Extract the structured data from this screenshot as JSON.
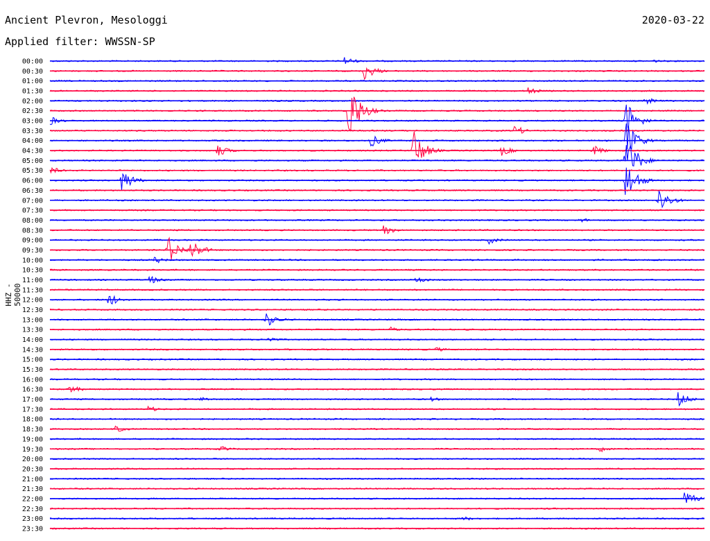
{
  "header": {
    "station": "Ancient Plevron, Mesologgi",
    "filter": "Applied filter: WWSSN-SP",
    "date": "2020-03-22"
  },
  "chart_data": {
    "type": "line",
    "ylabel": "HHZ - 50000",
    "row_labels": [
      "00:00",
      "00:30",
      "01:00",
      "01:30",
      "02:00",
      "02:30",
      "03:00",
      "03:30",
      "04:00",
      "04:30",
      "05:00",
      "05:30",
      "06:00",
      "06:30",
      "07:00",
      "07:30",
      "08:00",
      "08:30",
      "09:00",
      "09:30",
      "10:00",
      "10:30",
      "11:00",
      "11:30",
      "12:00",
      "12:30",
      "13:00",
      "13:30",
      "14:00",
      "14:30",
      "15:00",
      "15:30",
      "16:00",
      "16:30",
      "17:00",
      "17:30",
      "18:00",
      "18:30",
      "19:00",
      "19:30",
      "20:00",
      "20:30",
      "21:00",
      "21:30",
      "22:00",
      "22:30",
      "23:00",
      "23:30"
    ],
    "colors": {
      "even": "#0000ff",
      "odd": "#ff0040"
    },
    "events": [
      {
        "row": 0,
        "pos": 0.45,
        "amp": 7
      },
      {
        "row": 0,
        "pos": 0.92,
        "amp": 3
      },
      {
        "row": 1,
        "pos": 0.48,
        "amp": 14
      },
      {
        "row": 3,
        "pos": 0.73,
        "amp": 6
      },
      {
        "row": 4,
        "pos": 0.91,
        "amp": 6
      },
      {
        "row": 5,
        "pos": 0.455,
        "amp": 55
      },
      {
        "row": 5,
        "pos": 1.0,
        "amp": 6
      },
      {
        "row": 6,
        "pos": 0.0,
        "amp": 7
      },
      {
        "row": 6,
        "pos": 0.88,
        "amp": 30
      },
      {
        "row": 7,
        "pos": 0.71,
        "amp": 8
      },
      {
        "row": 8,
        "pos": 0.49,
        "amp": 10
      },
      {
        "row": 8,
        "pos": 0.88,
        "amp": 30
      },
      {
        "row": 9,
        "pos": 0.255,
        "amp": 10
      },
      {
        "row": 9,
        "pos": 0.555,
        "amp": 32
      },
      {
        "row": 9,
        "pos": 0.69,
        "amp": 8
      },
      {
        "row": 9,
        "pos": 0.83,
        "amp": 8
      },
      {
        "row": 10,
        "pos": 0.88,
        "amp": 40
      },
      {
        "row": 11,
        "pos": 0.0,
        "amp": 6
      },
      {
        "row": 12,
        "pos": 0.11,
        "amp": 18
      },
      {
        "row": 12,
        "pos": 0.88,
        "amp": 32
      },
      {
        "row": 14,
        "pos": 0.93,
        "amp": 20
      },
      {
        "row": 16,
        "pos": 0.81,
        "amp": 4
      },
      {
        "row": 17,
        "pos": 0.51,
        "amp": 8
      },
      {
        "row": 18,
        "pos": 0.67,
        "amp": 6
      },
      {
        "row": 19,
        "pos": 0.18,
        "amp": 22
      },
      {
        "row": 19,
        "pos": 0.215,
        "amp": 18
      },
      {
        "row": 20,
        "pos": 0.16,
        "amp": 6
      },
      {
        "row": 22,
        "pos": 0.15,
        "amp": 8
      },
      {
        "row": 22,
        "pos": 0.56,
        "amp": 6
      },
      {
        "row": 24,
        "pos": 0.09,
        "amp": 10
      },
      {
        "row": 26,
        "pos": 0.33,
        "amp": 12
      },
      {
        "row": 27,
        "pos": 0.52,
        "amp": 4
      },
      {
        "row": 28,
        "pos": 0.33,
        "amp": 6
      },
      {
        "row": 29,
        "pos": 0.59,
        "amp": 4
      },
      {
        "row": 33,
        "pos": 0.03,
        "amp": 7
      },
      {
        "row": 34,
        "pos": 0.23,
        "amp": 4
      },
      {
        "row": 34,
        "pos": 0.58,
        "amp": 4
      },
      {
        "row": 34,
        "pos": 0.96,
        "amp": 12
      },
      {
        "row": 35,
        "pos": 0.15,
        "amp": 5
      },
      {
        "row": 37,
        "pos": 0.1,
        "amp": 6
      },
      {
        "row": 39,
        "pos": 0.26,
        "amp": 5
      },
      {
        "row": 39,
        "pos": 0.84,
        "amp": 5
      },
      {
        "row": 44,
        "pos": 0.97,
        "amp": 12
      },
      {
        "row": 46,
        "pos": 0.63,
        "amp": 4
      }
    ]
  }
}
